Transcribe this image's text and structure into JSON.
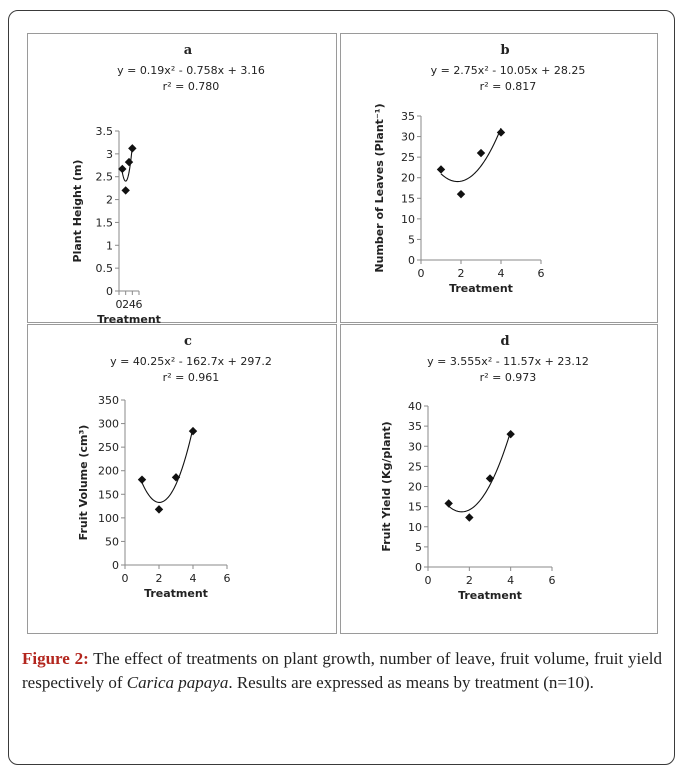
{
  "caption": {
    "label": "Figure 2:",
    "text_before": " The effect of treatments on plant growth, number of leave, fruit volume, fruit yield respectively of ",
    "species": "Carica papaya",
    "text_after": ". Results are expressed as means by treatment (n=10)."
  },
  "chart_data": [
    {
      "type": "scatter",
      "panel": "a",
      "x": [
        1,
        2,
        3,
        4
      ],
      "y": [
        2.67,
        2.2,
        2.82,
        3.12
      ],
      "trendline": {
        "type": "polynomial",
        "coefficients": [
          0.19,
          -0.758,
          3.16
        ]
      },
      "equation": "y = 0.19x² - 0.758x + 3.16",
      "r2": "r² = 0.780",
      "xlabel": "Treatment",
      "ylabel": "Plant Height (m)",
      "xlim": [
        0,
        6
      ],
      "xticks": [
        "0",
        "2",
        "4",
        "6"
      ],
      "ylim": [
        0,
        3.5
      ],
      "yticks": [
        "0",
        "0.5",
        "1",
        "1.5",
        "2",
        "2.5",
        "3",
        "3.5"
      ]
    },
    {
      "type": "scatter",
      "panel": "b",
      "x": [
        1,
        2,
        3,
        4
      ],
      "y": [
        22,
        16,
        26,
        31
      ],
      "trendline": {
        "type": "polynomial",
        "coefficients": [
          2.75,
          -10.05,
          28.25
        ]
      },
      "equation": "y = 2.75x² - 10.05x + 28.25",
      "r2": "r² = 0.817",
      "xlabel": "Treatment",
      "ylabel": "Number of Leaves (Plant⁻¹)",
      "xlim": [
        0,
        6
      ],
      "xticks": [
        "0",
        "2",
        "4",
        "6"
      ],
      "ylim": [
        0,
        35
      ],
      "yticks": [
        "0",
        "5",
        "10",
        "15",
        "20",
        "25",
        "30",
        "35"
      ]
    },
    {
      "type": "scatter",
      "panel": "c",
      "x": [
        1,
        2,
        3,
        4
      ],
      "y": [
        181,
        118,
        186,
        284
      ],
      "trendline": {
        "type": "polynomial",
        "coefficients": [
          40.25,
          -162.7,
          297.2
        ]
      },
      "equation": "y = 40.25x² - 162.7x + 297.2",
      "r2": "r² = 0.961",
      "xlabel": "Treatment",
      "ylabel": "Fruit Volume (cm³)",
      "xlim": [
        0,
        6
      ],
      "xticks": [
        "0",
        "2",
        "4",
        "6"
      ],
      "ylim": [
        0,
        350
      ],
      "yticks": [
        "0",
        "50",
        "100",
        "150",
        "200",
        "250",
        "300",
        "350"
      ]
    },
    {
      "type": "scatter",
      "panel": "d",
      "x": [
        1,
        2,
        3,
        4
      ],
      "y": [
        15.8,
        12.3,
        22,
        33
      ],
      "trendline": {
        "type": "polynomial",
        "coefficients": [
          3.555,
          -11.57,
          23.12
        ]
      },
      "equation": "y = 3.555x² - 11.57x + 23.12",
      "r2": "r² = 0.973",
      "xlabel": "Treatment",
      "ylabel": "Fruit Yield (Kg/plant)",
      "xlim": [
        0,
        6
      ],
      "xticks": [
        "0",
        "2",
        "4",
        "6"
      ],
      "ylim": [
        0,
        40
      ],
      "yticks": [
        "0",
        "5",
        "10",
        "15",
        "20",
        "25",
        "30",
        "35",
        "40"
      ]
    }
  ]
}
